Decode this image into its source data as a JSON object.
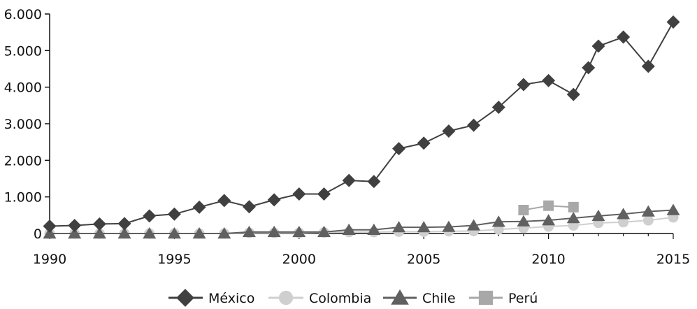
{
  "chart_data": {
    "type": "line",
    "title": "",
    "xlabel": "",
    "ylabel": "",
    "x": [
      1990,
      1991,
      1992,
      1993,
      1994,
      1995,
      1996,
      1997,
      1998,
      1999,
      2000,
      2001,
      2002,
      2003,
      2004,
      2005,
      2006,
      2007,
      2008,
      2009,
      2010,
      2011,
      2012,
      2013,
      2014,
      2015
    ],
    "xlim": [
      1990,
      2015
    ],
    "ylim": [
      0,
      6000
    ],
    "x_ticks": [
      1990,
      1995,
      2000,
      2005,
      2010,
      2015
    ],
    "x_tick_labels": [
      "1990",
      "1995",
      "2000",
      "2005",
      "2010",
      "2015"
    ],
    "y_ticks": [
      0,
      1000,
      2000,
      3000,
      4000,
      5000,
      6000
    ],
    "y_tick_labels": [
      "0",
      "1.000",
      "2.000",
      "3.000",
      "4.000",
      "5.000",
      "6.000"
    ],
    "grid": false,
    "legend_position": "bottom",
    "series": [
      {
        "name": "México",
        "marker": "diamond",
        "color": "#404040",
        "x": [
          1990,
          1991,
          1992,
          1993,
          1994,
          1995,
          1996,
          1997,
          1998,
          1999,
          2000,
          2001,
          2002,
          2003,
          2004,
          2005,
          2006,
          2007,
          2008,
          2009,
          2010,
          2011,
          2011.6,
          2012,
          2013,
          2014,
          2015
        ],
        "values": [
          200,
          220,
          260,
          270,
          480,
          530,
          720,
          900,
          730,
          920,
          1080,
          1080,
          1450,
          1420,
          2320,
          2470,
          2800,
          2960,
          3450,
          4070,
          4180,
          3800,
          4530,
          5120,
          5370,
          4570,
          5780
        ]
      },
      {
        "name": "Colombia",
        "marker": "circle",
        "color": "#cfcfcf",
        "x": [
          1990,
          1991,
          1992,
          1993,
          1994,
          1995,
          1996,
          1997,
          1998,
          1999,
          2000,
          2001,
          2002,
          2003,
          2004,
          2005,
          2006,
          2007,
          2008,
          2009,
          2010,
          2011,
          2012,
          2013,
          2014,
          2015
        ],
        "values": [
          0,
          0,
          0,
          0,
          0,
          0,
          0,
          0,
          20,
          20,
          20,
          30,
          40,
          40,
          50,
          50,
          60,
          70,
          110,
          150,
          190,
          220,
          290,
          310,
          360,
          440
        ]
      },
      {
        "name": "Chile",
        "marker": "triangle",
        "color": "#606060",
        "x": [
          1990,
          1991,
          1992,
          1993,
          1994,
          1995,
          1996,
          1997,
          1998,
          1999,
          2000,
          2001,
          2002,
          2003,
          2004,
          2005,
          2006,
          2007,
          2008,
          2009,
          2010,
          2011,
          2012,
          2013,
          2014,
          2015
        ],
        "values": [
          0,
          0,
          0,
          0,
          0,
          0,
          0,
          0,
          40,
          40,
          40,
          40,
          100,
          100,
          170,
          170,
          180,
          220,
          320,
          330,
          360,
          420,
          480,
          530,
          600,
          640
        ]
      },
      {
        "name": "Perú",
        "marker": "square",
        "color": "#a8a8a8",
        "x": [
          2009,
          2010,
          2011
        ],
        "values": [
          640,
          760,
          720
        ]
      }
    ]
  }
}
